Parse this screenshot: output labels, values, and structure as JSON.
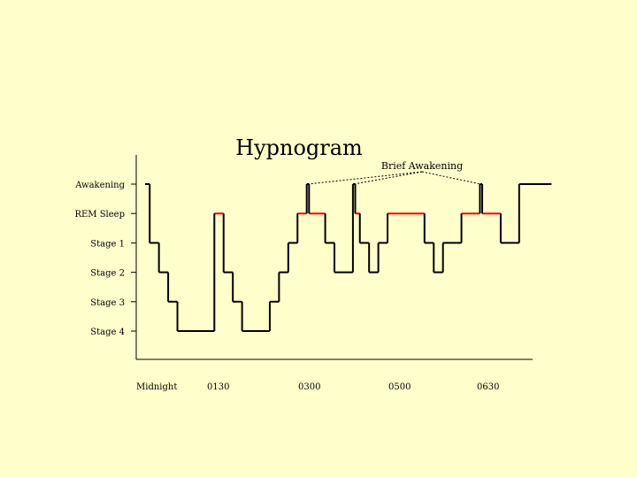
{
  "chart_data": {
    "type": "line",
    "title": "Hypnogram",
    "xlabel": "",
    "ylabel": "",
    "x_ticks": [
      "Midnight",
      "0130",
      "0300",
      "0500",
      "0630"
    ],
    "y_levels": [
      "Awakening",
      "REM Sleep",
      "Stage 1",
      "Stage 2",
      "Stage 3",
      "Stage 4"
    ],
    "grid": false,
    "colors": {
      "normal": "#000000",
      "rem": "#ff0000",
      "background": "#ffffcc"
    },
    "annotation": "Brief Awakening",
    "series": [
      {
        "segments": [
          {
            "x_start": 0.0,
            "x_end": 0.1,
            "stage": "Awakening"
          },
          {
            "x_start": 0.1,
            "x_end": 0.3,
            "stage": "Stage 1"
          },
          {
            "x_start": 0.3,
            "x_end": 0.5,
            "stage": "Stage 2"
          },
          {
            "x_start": 0.5,
            "x_end": 0.7,
            "stage": "Stage 3"
          },
          {
            "x_start": 0.7,
            "x_end": 1.5,
            "stage": "Stage 4"
          },
          {
            "x_start": 1.5,
            "x_end": 1.7,
            "stage": "REM Sleep"
          },
          {
            "x_start": 1.7,
            "x_end": 1.9,
            "stage": "Stage 2"
          },
          {
            "x_start": 1.9,
            "x_end": 2.1,
            "stage": "Stage 3"
          },
          {
            "x_start": 2.1,
            "x_end": 2.7,
            "stage": "Stage 4"
          },
          {
            "x_start": 2.7,
            "x_end": 2.9,
            "stage": "Stage 3"
          },
          {
            "x_start": 2.9,
            "x_end": 3.1,
            "stage": "Stage 2"
          },
          {
            "x_start": 3.1,
            "x_end": 3.3,
            "stage": "Stage 1"
          },
          {
            "x_start": 3.3,
            "x_end": 3.5,
            "stage": "REM Sleep"
          },
          {
            "x_start": 3.5,
            "x_end": 3.55,
            "stage": "Awakening"
          },
          {
            "x_start": 3.55,
            "x_end": 3.9,
            "stage": "REM Sleep"
          },
          {
            "x_start": 3.9,
            "x_end": 4.1,
            "stage": "Stage 1"
          },
          {
            "x_start": 4.1,
            "x_end": 4.5,
            "stage": "Stage 2"
          },
          {
            "x_start": 4.5,
            "x_end": 4.55,
            "stage": "Awakening"
          },
          {
            "x_start": 4.55,
            "x_end": 4.65,
            "stage": "REM Sleep"
          },
          {
            "x_start": 4.65,
            "x_end": 4.85,
            "stage": "Stage 1"
          },
          {
            "x_start": 4.85,
            "x_end": 5.05,
            "stage": "Stage 2"
          },
          {
            "x_start": 5.05,
            "x_end": 5.25,
            "stage": "Stage 1"
          },
          {
            "x_start": 5.25,
            "x_end": 6.05,
            "stage": "REM Sleep"
          },
          {
            "x_start": 6.05,
            "x_end": 6.25,
            "stage": "Stage 1"
          },
          {
            "x_start": 6.25,
            "x_end": 6.45,
            "stage": "Stage 2"
          },
          {
            "x_start": 6.45,
            "x_end": 6.85,
            "stage": "Stage 1"
          },
          {
            "x_start": 6.85,
            "x_end": 7.25,
            "stage": "REM Sleep"
          },
          {
            "x_start": 7.25,
            "x_end": 7.3,
            "stage": "Awakening"
          },
          {
            "x_start": 7.3,
            "x_end": 7.7,
            "stage": "REM Sleep"
          },
          {
            "x_start": 7.7,
            "x_end": 8.1,
            "stage": "Stage 1"
          },
          {
            "x_start": 8.1,
            "x_end": 8.8,
            "stage": "Awakening"
          }
        ]
      }
    ],
    "brief_awakenings_x": [
      3.52,
      4.52,
      7.27
    ]
  }
}
